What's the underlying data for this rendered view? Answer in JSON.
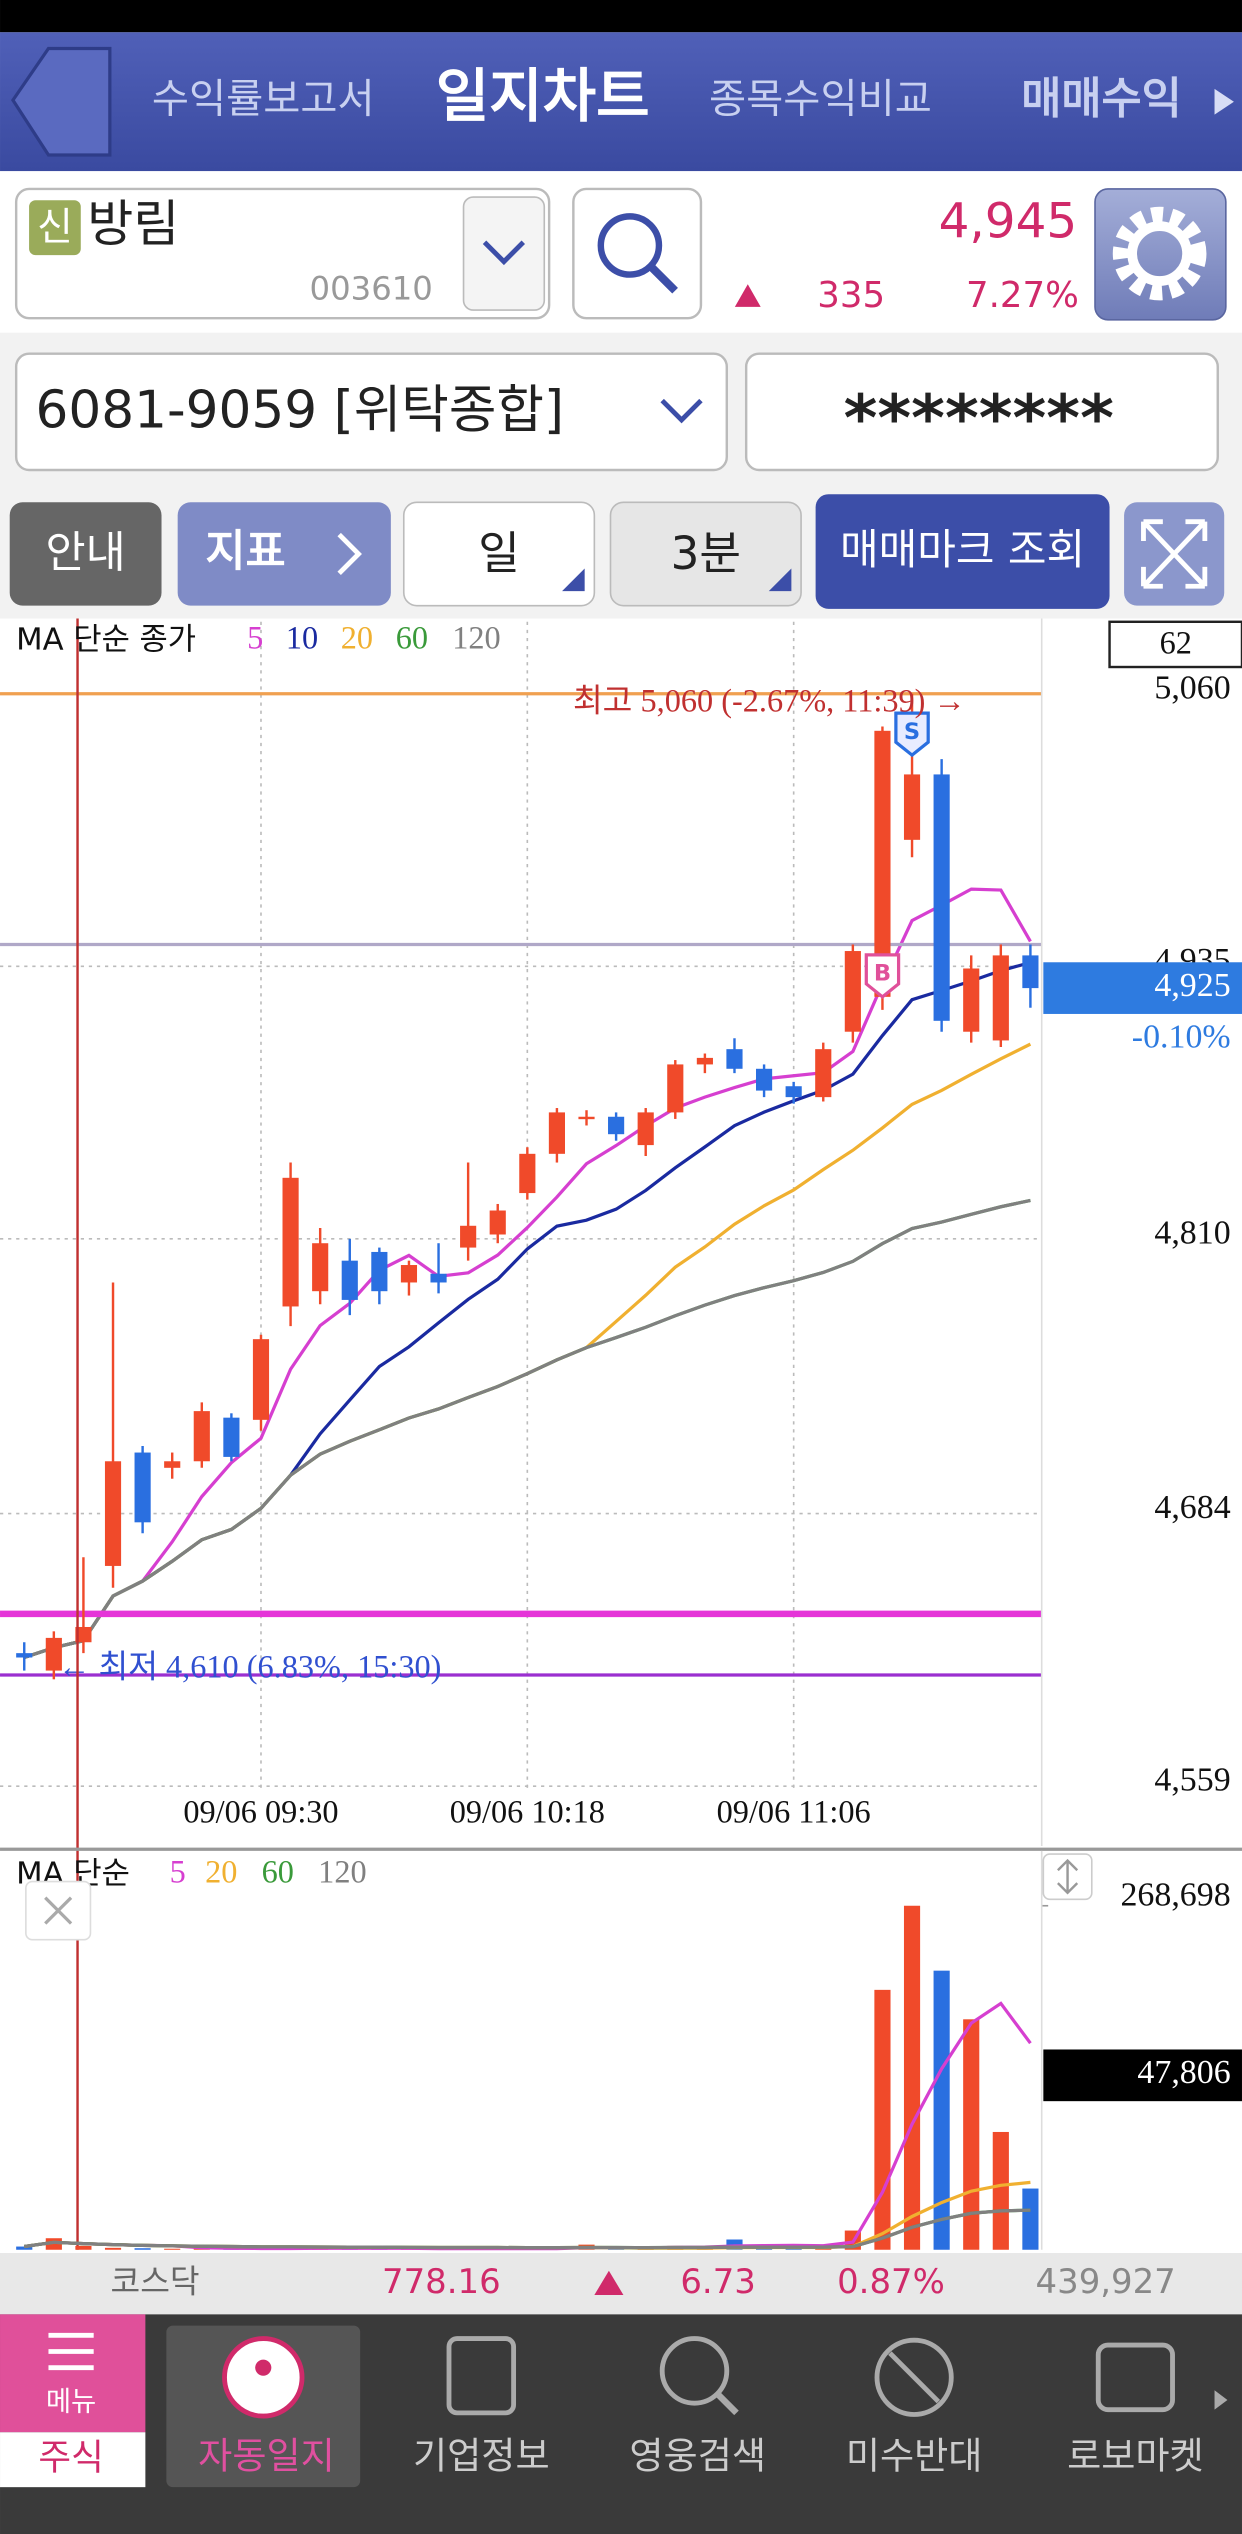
{
  "header": {
    "tabs": [
      "수익률보고서",
      "일지차트",
      "종목수익비교",
      "매매수익"
    ]
  },
  "stock": {
    "badge": "신",
    "name": "방림",
    "code": "003610",
    "price": "4,945",
    "change": "335",
    "change_pct": "7.27%"
  },
  "account": {
    "number": "6081-9059 [위탁종합]",
    "password": "********"
  },
  "toolbar": {
    "buttons": [
      "안내",
      "지표",
      "일",
      "3분",
      "매매마크 조회"
    ]
  },
  "chart_data": [
    {
      "type": "candlestick",
      "legend_label": "MA 단순 종가",
      "series": [
        {
          "name": "5",
          "color": "#d63fd0",
          "window": 5
        },
        {
          "name": "10",
          "color": "#1a2aa0",
          "window": 10
        },
        {
          "name": "20",
          "color": "#f0b030",
          "window": 20
        },
        {
          "name": "60",
          "color": "#3a9a3a",
          "window": 60
        },
        {
          "name": "120",
          "color": "#808080",
          "window": 120
        }
      ],
      "categories": [
        null,
        null,
        null,
        null,
        null,
        null,
        null,
        null,
        "09/06 09:30",
        null,
        null,
        null,
        null,
        null,
        null,
        null,
        null,
        "09/06 10:18",
        null,
        null,
        null,
        null,
        null,
        null,
        null,
        null,
        "09/06 11:06",
        null,
        null,
        null,
        null,
        null,
        null,
        null,
        null
      ],
      "open": [
        4620,
        4612,
        4625,
        4660,
        4712,
        4705,
        4708,
        4728,
        4727,
        4779,
        4786,
        4800,
        4804,
        4790,
        4794,
        4806,
        4812,
        4831,
        4849,
        4865,
        4866,
        4853,
        4868,
        4890,
        4897,
        4888,
        4880,
        4875,
        4905,
        4921,
        4993,
        5023,
        4905,
        4901,
        4940
      ],
      "high": [
        4625,
        4630,
        4664,
        4790,
        4715,
        4712,
        4735,
        4730,
        4766,
        4845,
        4815,
        4810,
        4806,
        4800,
        4808,
        4845,
        4826,
        4852,
        4870,
        4869,
        4868,
        4870,
        4892,
        4895,
        4902,
        4890,
        4882,
        4900,
        4945,
        5045,
        5060,
        5030,
        4940,
        4945,
        4945
      ],
      "low": [
        4612,
        4608,
        4620,
        4650,
        4675,
        4700,
        4705,
        4708,
        4722,
        4770,
        4780,
        4775,
        4780,
        4784,
        4785,
        4800,
        4808,
        4828,
        4845,
        4862,
        4855,
        4848,
        4865,
        4886,
        4886,
        4875,
        4872,
        4873,
        4900,
        4915,
        4985,
        4905,
        4900,
        4898,
        4916
      ],
      "close": [
        4618,
        4627,
        4632,
        4708,
        4680,
        4708,
        4731,
        4710,
        4764,
        4838,
        4808,
        4782,
        4786,
        4798,
        4790,
        4816,
        4823,
        4849,
        4868,
        4866,
        4858,
        4868,
        4890,
        4893,
        4888,
        4878,
        4875,
        4897,
        4942,
        5043,
        5023,
        4910,
        4934,
        4940,
        4925
      ],
      "up_color": "#f04a2a",
      "down_color": "#2a6fe0",
      "ylim": [
        4556,
        5093
      ],
      "yticks": [
        {
          "value": 5060,
          "label": "5,060"
        },
        {
          "value": 4935,
          "label": "4,935"
        },
        {
          "value": 4810,
          "label": "4,810"
        },
        {
          "value": 4684,
          "label": "4,684"
        },
        {
          "value": 4559,
          "label": "4,559"
        }
      ],
      "grid": true,
      "reference_lines": [
        {
          "value": 5060,
          "color": "#f0a050"
        },
        {
          "value": 4945,
          "color": "#b0a8c8"
        },
        {
          "value": 4638,
          "color": "#e535d8"
        },
        {
          "value": 4610,
          "color": "#9b2fd0"
        }
      ],
      "high_label": "최고 5,060 (-2.67%, 11:39) →",
      "low_label": "← 최저 4,610 (6.83%, 15:30)",
      "trade_marks": [
        {
          "index": 29,
          "label": "B"
        },
        {
          "index": 30,
          "label": "S"
        }
      ],
      "count_box": "62",
      "last_label": "4,925",
      "last_change": "-0.10%"
    },
    {
      "type": "bar",
      "legend_label": "MA 단순",
      "series": [
        {
          "name": "5",
          "color": "#d63fd0",
          "window": 5
        },
        {
          "name": "20",
          "color": "#f0b030",
          "window": 20
        },
        {
          "name": "60",
          "color": "#3a9a3a",
          "window": 60
        },
        {
          "name": "120",
          "color": "#808080",
          "window": 120
        }
      ],
      "values": [
        2500,
        9000,
        3000,
        1500,
        1200,
        800,
        1000,
        900,
        1000,
        1500,
        1200,
        1100,
        800,
        900,
        700,
        1000,
        900,
        1200,
        900,
        4000,
        1000,
        700,
        3000,
        1500,
        8000,
        3000,
        1500,
        2000,
        15000,
        203000,
        268698,
        218000,
        180000,
        92000,
        47806
      ],
      "ylim": [
        0,
        268698
      ],
      "yticks": [
        {
          "value": 268698,
          "label": "268,698"
        }
      ],
      "last_value_label": "47,806"
    }
  ],
  "market": {
    "name": "코스닥",
    "index": "778.16",
    "change": "6.73",
    "change_pct": "0.87%",
    "volume": "439,927"
  },
  "nav": {
    "menu": "메뉴",
    "items": [
      "주식",
      "자동일지",
      "기업정보",
      "영웅검색",
      "미수반대",
      "로보마켓"
    ]
  }
}
